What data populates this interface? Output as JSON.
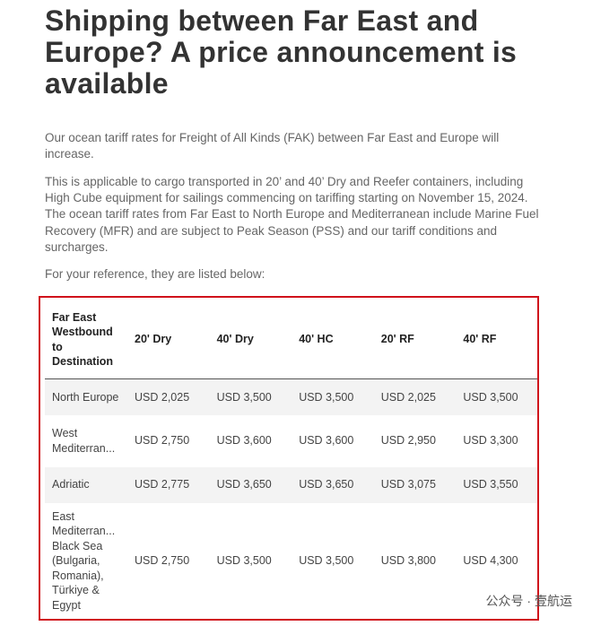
{
  "header": {
    "title": "Shipping between Far East and Europe? A price announcement is available"
  },
  "paragraphs": [
    "Our ocean tariff rates for Freight of All Kinds (FAK) between Far East and Europe will increase.",
    "This is applicable to cargo transported in 20’ and 40’ Dry and Reefer containers, including High Cube equipment for sailings commencing on tariffing starting on November 15, 2024. The ocean tariff rates from Far East to North Europe and Mediterranean include Marine Fuel Recovery (MFR) and are subject to Peak Season (PSS) and our tariff conditions and surcharges.",
    "For your reference, they are listed below:"
  ],
  "table": {
    "columns": [
      "Far East Westbound to Destination",
      "20' Dry",
      "40' Dry",
      "40' HC",
      "20' RF",
      "40' RF"
    ],
    "rows": [
      [
        "North Europe",
        "USD 2,025",
        "USD 3,500",
        "USD 3,500",
        "USD 2,025",
        "USD 3,500"
      ],
      [
        "West Mediterran...",
        "USD 2,750",
        "USD 3,600",
        "USD 3,600",
        "USD 2,950",
        "USD 3,300"
      ],
      [
        "Adriatic",
        "USD 2,775",
        "USD 3,650",
        "USD 3,650",
        "USD 3,075",
        "USD 3,550"
      ],
      [
        "East Mediterran... Black Sea (Bulgaria, Romania), Türkiye & Egypt",
        "USD 2,750",
        "USD 3,500",
        "USD 3,500",
        "USD 3,800",
        "USD 4,300"
      ]
    ]
  },
  "watermark": "公众号 · 壹航运"
}
